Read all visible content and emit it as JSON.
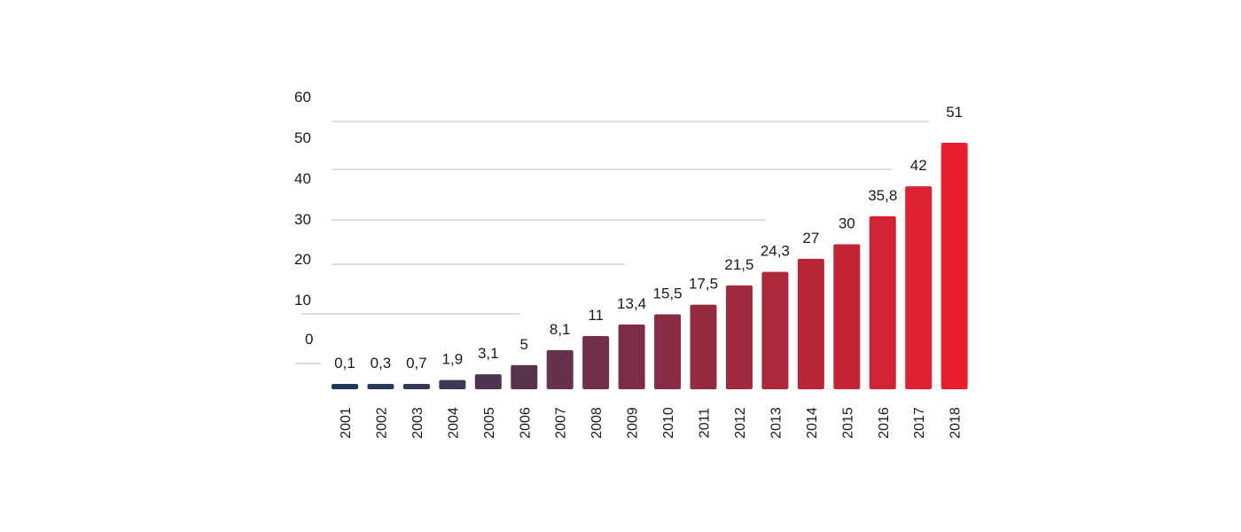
{
  "chart_data": {
    "type": "bar",
    "title": "",
    "xlabel": "",
    "ylabel": "",
    "ylim": [
      0,
      60
    ],
    "y_ticks": [
      "60",
      "50",
      "40",
      "30",
      "20",
      "10",
      "0"
    ],
    "grid": true,
    "legend": "none",
    "categories": [
      "2001",
      "2002",
      "2003",
      "2004",
      "2005",
      "2006",
      "2007",
      "2008",
      "2009",
      "2010",
      "2011",
      "2012",
      "2013",
      "2014",
      "2015",
      "2016",
      "2017",
      "2018"
    ],
    "values": [
      0.1,
      0.3,
      0.7,
      1.9,
      3.1,
      5,
      8.1,
      11,
      13.4,
      15.5,
      17.5,
      21.5,
      24.3,
      27,
      30,
      35.8,
      42,
      51
    ],
    "value_labels": [
      "0,1",
      "0,3",
      "0,7",
      "1,9",
      "3,1",
      "5",
      "8,1",
      "11",
      "13,4",
      "15,5",
      "17,5",
      "21,5",
      "24,3",
      "27",
      "30",
      "35,8",
      "42",
      "51"
    ],
    "colors": {
      "gradient_start": "#1d3a5c",
      "gradient_end": "#e8202d",
      "grid": "#c8c8c8",
      "text": "#1a1a1a"
    }
  }
}
